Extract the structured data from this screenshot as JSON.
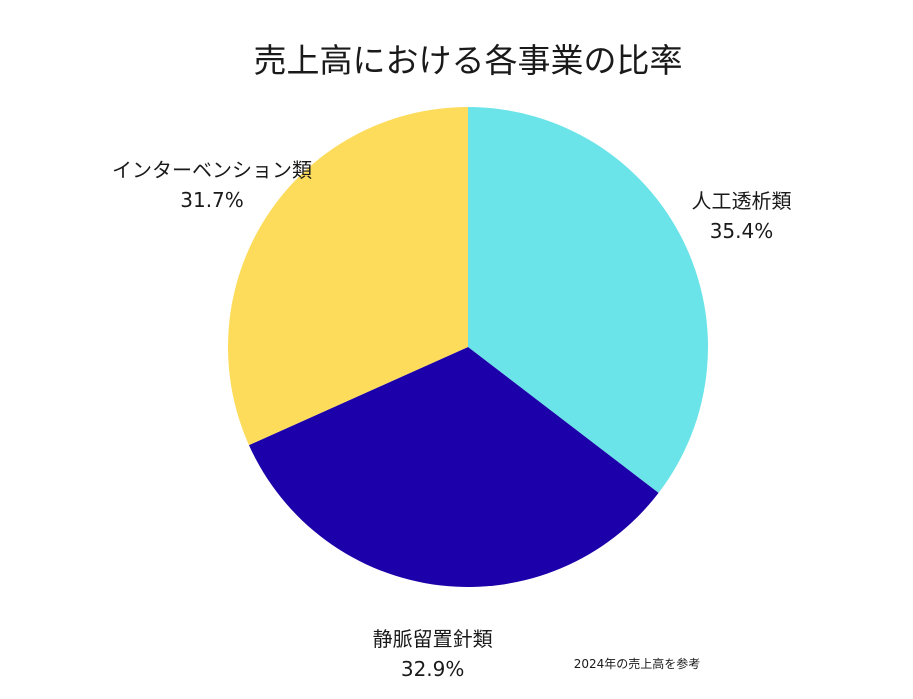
{
  "chart_data": {
    "type": "pie",
    "title": "売上高における各事業の比率",
    "source_note": "2024年の売上高を参考",
    "slices": [
      {
        "label": "人工透析類",
        "value": 35.4,
        "value_label": "35.4%",
        "color": "#6ae4e8"
      },
      {
        "label": "静脈留置針類",
        "value": 32.9,
        "value_label": "32.9%",
        "color": "#1c00a9"
      },
      {
        "label": "インターベンション類",
        "value": 31.7,
        "value_label": "31.7%",
        "color": "#fddc5c"
      }
    ],
    "start": "top",
    "direction": "clockwise"
  }
}
